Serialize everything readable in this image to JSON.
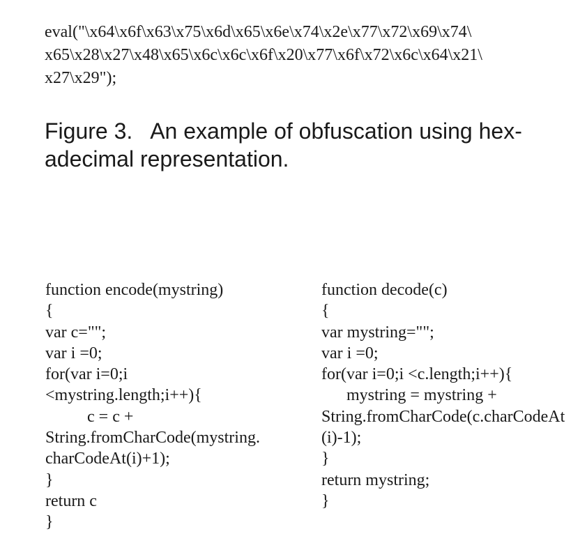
{
  "eval_code": {
    "lines": [
      "eval(\"\\x64\\x6f\\x63\\x75\\x6d\\x65\\x6e\\x74\\x2e\\x77\\x72\\x69\\x74\\",
      "x65\\x28\\x27\\x48\\x65\\x6c\\x6c\\x6f\\x20\\x77\\x6f\\x72\\x6c\\x64\\x21\\",
      "x27\\x29\");"
    ]
  },
  "caption": {
    "lines": [
      "Figure 3.   An example of obfuscation using hex-",
      "adecimal representation."
    ]
  },
  "encode_code": {
    "lines": [
      "function encode(mystring)",
      "{",
      "var c=\"\";",
      "var i =0;",
      "for(var i=0;i",
      "<mystring.length;i++){",
      "          c = c +",
      "String.fromCharCode(mystring.",
      "charCodeAt(i)+1);",
      "}",
      "return c",
      "}"
    ]
  },
  "decode_code": {
    "lines": [
      "function decode(c)",
      "{",
      "var mystring=\"\";",
      "var i =0;",
      "for(var i=0;i <c.length;i++){",
      "      mystring = mystring +",
      "String.fromCharCode(c.charCodeAt",
      "(i)-1);",
      "}",
      "return mystring;",
      "}"
    ]
  }
}
